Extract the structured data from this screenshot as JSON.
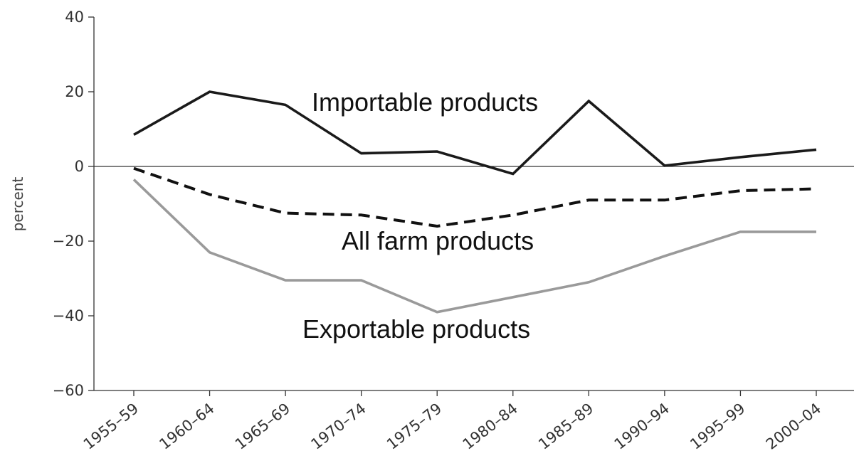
{
  "chart_data": {
    "type": "line",
    "title": "",
    "xlabel": "",
    "ylabel": "percent",
    "ylim": [
      -60,
      40
    ],
    "yticks": [
      "40",
      "20",
      "0",
      "−20",
      "−40",
      "−60"
    ],
    "categories": [
      "1955–59",
      "1960–64",
      "1965–69",
      "1970–74",
      "1975–79",
      "1980–84",
      "1985–89",
      "1990–94",
      "1995–99",
      "2000–04"
    ],
    "series": [
      {
        "name": "Importable products",
        "values": [
          8.5,
          20,
          16.5,
          3.5,
          4,
          -2,
          17.5,
          0.2,
          2.5,
          4.5
        ],
        "color": "#1a1a1a",
        "style": "solid"
      },
      {
        "name": "All farm products",
        "values": [
          -0.5,
          -7.5,
          -12.5,
          -13,
          -16,
          -13,
          -9,
          -9,
          -6.5,
          -6
        ],
        "color": "#111111",
        "style": "dashed"
      },
      {
        "name": "Exportable products",
        "values": [
          -3.5,
          -23,
          -30.5,
          -30.5,
          -39,
          -35,
          -31,
          -24,
          -17.5,
          -17.5
        ],
        "color": "#9a9a9a",
        "style": "solid"
      }
    ],
    "grid": false,
    "legend": "inline labels"
  }
}
